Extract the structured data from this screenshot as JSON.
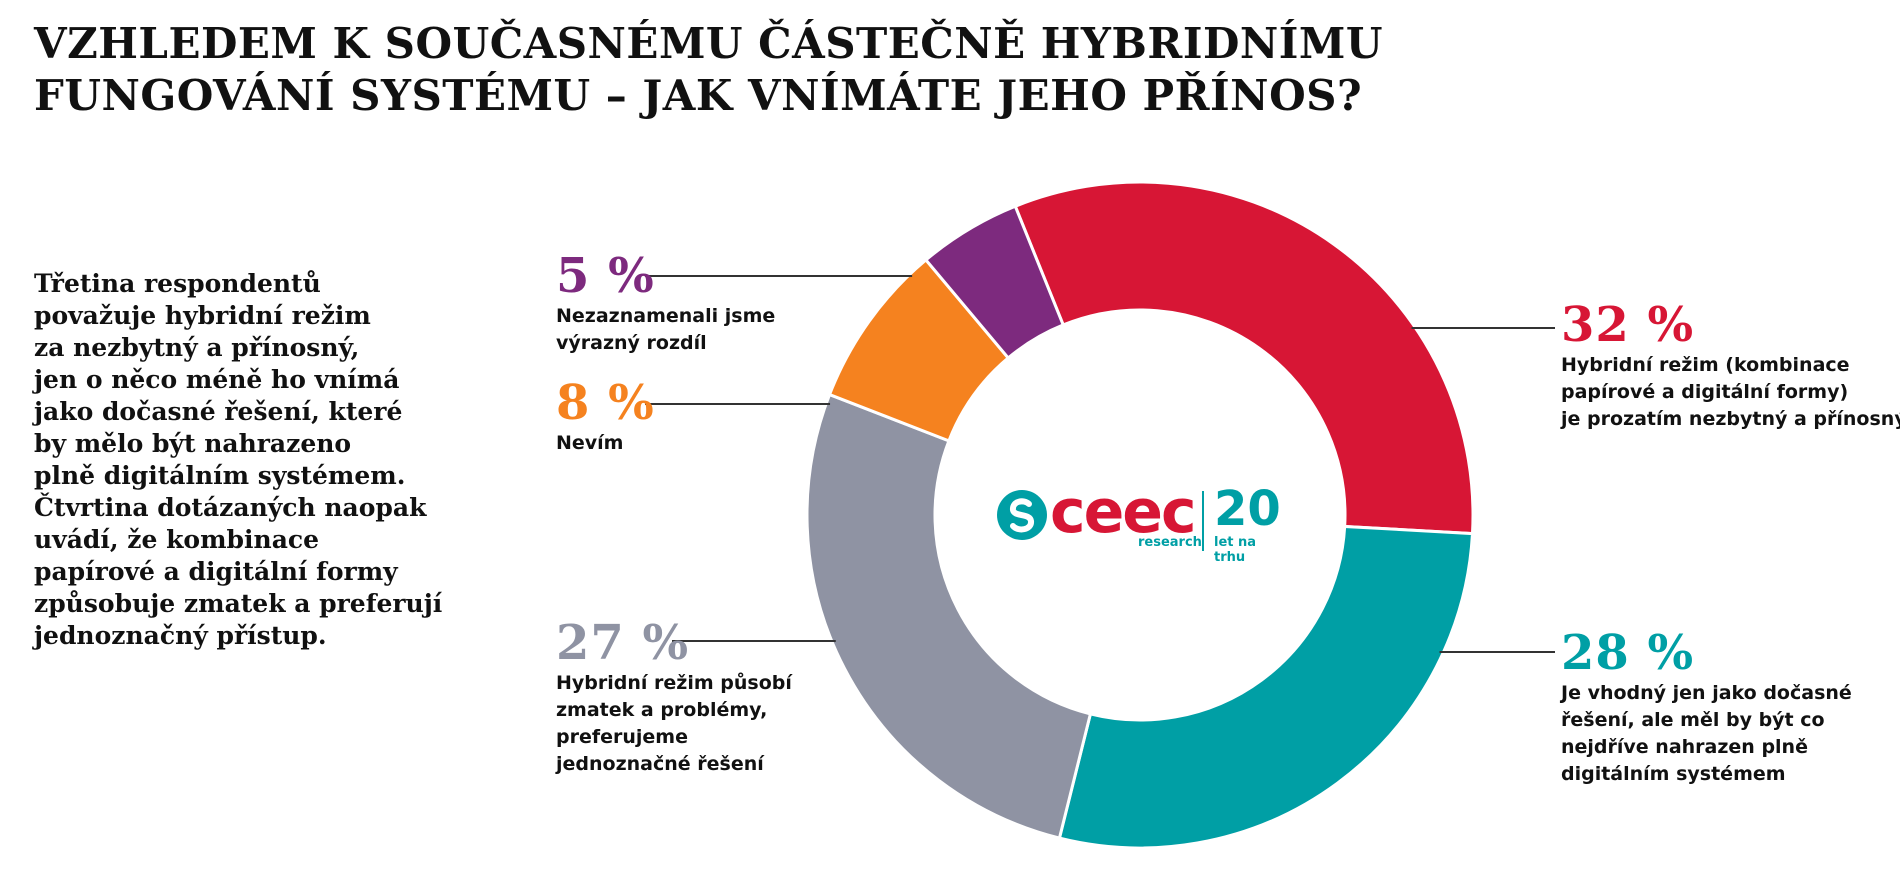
{
  "title": {
    "line1": "VZHLEDEM K SOUČASNÉMU ČÁSTEČNĚ HYBRIDNÍMU",
    "line2": "FUNGOVÁNÍ SYSTÉMU – JAK VNÍMÁTE JEHO PŘÍNOS?"
  },
  "intro": {
    "lines": [
      "Třetina respondentů",
      "považuje hybridní režim",
      "za nezbytný a přínosný,",
      "jen o něco méně ho vnímá",
      "jako dočasné řešení, které",
      "by mělo být nahrazeno",
      "plně digitálním systémem.",
      "Čtvrtina dotázaných naopak",
      "uvádí, že kombinace",
      "papírové a digitální formy",
      "způsobuje zmatek a preferují",
      "jednoznačný přístup."
    ]
  },
  "logo": {
    "word": "ceec",
    "sub": "research",
    "years": "20",
    "years_sub": "let na trhu",
    "color_red": "#d71635",
    "color_teal": "#009fa5"
  },
  "chart_data": {
    "type": "pie",
    "donut": true,
    "slices": [
      {
        "label": "32 %",
        "value": 32,
        "color": "#d71635",
        "desc": [
          "Hybridní režim (kombinace",
          "papírové a digitální formy)",
          "je prozatím nezbytný a přínosný"
        ]
      },
      {
        "label": "28 %",
        "value": 28,
        "color": "#009fa5",
        "desc": [
          "Je vhodný jen jako dočasné",
          "řešení, ale měl by být co",
          "nejdříve nahrazen plně",
          "digitálním systémem"
        ]
      },
      {
        "label": "27 %",
        "value": 27,
        "color": "#8f93a3",
        "desc": [
          "Hybridní režim působí",
          "zmatek a problémy,",
          "preferujeme",
          "jednoznačné řešení"
        ]
      },
      {
        "label": "8 %",
        "value": 8,
        "color": "#f5821f",
        "desc": [
          "Nevím"
        ]
      },
      {
        "label": "5 %",
        "value": 5,
        "color": "#7d2a7e",
        "desc": [
          "Nezaznamenali jsme",
          "výrazný rozdíl"
        ]
      }
    ]
  }
}
